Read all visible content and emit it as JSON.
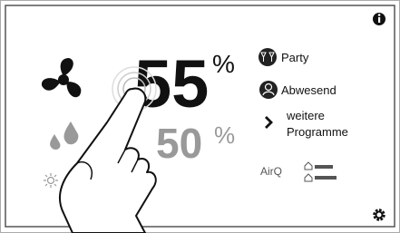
{
  "fan": {
    "value": "55",
    "unit": "%"
  },
  "humidity": {
    "value": "50",
    "unit": "%"
  },
  "programs": [
    "Party",
    "Abwesend"
  ],
  "more_programs": [
    "weitere",
    "Programme"
  ],
  "air_quality": {
    "label": "AirQ"
  }
}
